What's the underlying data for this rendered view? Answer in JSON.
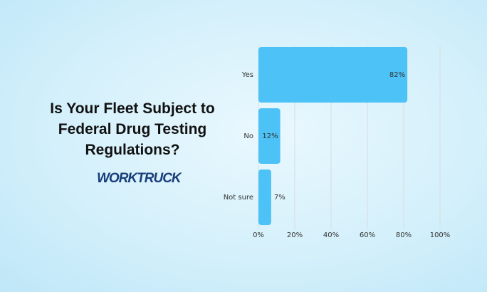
{
  "chart_data": {
    "type": "bar",
    "title": "Is Your Fleet Subject to Federal Drug Testing Regulations?",
    "brand": "WORKTRUCK",
    "categories": [
      "Yes",
      "No",
      "Not sure"
    ],
    "values": [
      82,
      12,
      7
    ],
    "value_labels": [
      "82%",
      "12%",
      "7%"
    ],
    "color": "#4cc2f7",
    "xlim": [
      0,
      100
    ],
    "xticks": [
      {
        "value": 0,
        "label": "0%"
      },
      {
        "value": 20,
        "label": "20%"
      },
      {
        "value": 40,
        "label": "40%"
      },
      {
        "value": 60,
        "label": "60%"
      },
      {
        "value": 80,
        "label": "80%"
      },
      {
        "value": 100,
        "label": "100%"
      }
    ],
    "grid": true
  }
}
